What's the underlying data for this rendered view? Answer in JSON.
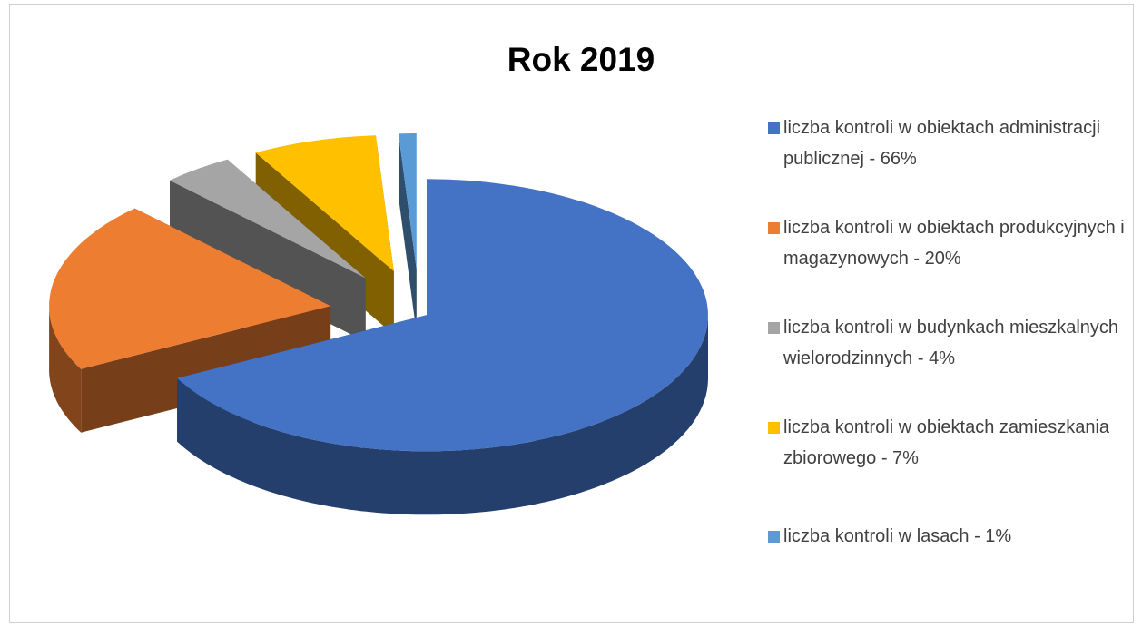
{
  "chart_data": {
    "type": "pie",
    "title": "Rok 2019",
    "categories": [
      "liczba kontroli w obiektach administracji publicznej - 66%",
      "liczba kontroli w obiektach produkcyjnych i magazynowych - 20%",
      "liczba kontroli w budynkach mieszkalnych wielorodzinnych - 4%",
      "liczba kontroli w obiektach zamieszkania zbiorowego - 7%",
      "liczba kontroli w lasach - 1%"
    ],
    "values": [
      66,
      20,
      4,
      7,
      1
    ],
    "colors": [
      "#4472c4",
      "#ed7d31",
      "#a5a5a5",
      "#ffc000",
      "#5b9bd5"
    ],
    "legend": "right"
  }
}
